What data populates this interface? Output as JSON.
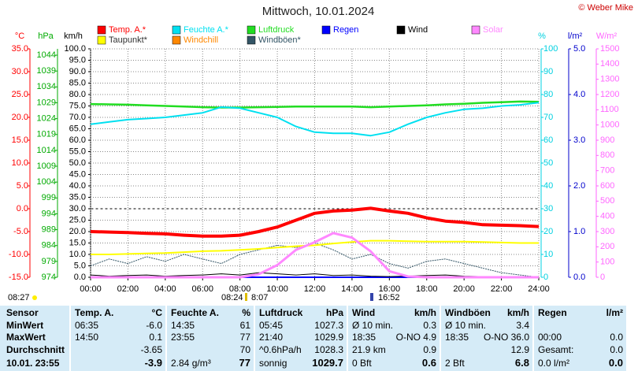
{
  "chart_data": {
    "type": "line",
    "title": "Mittwoch, 10.01.2024",
    "copyright": "© Weber Mike",
    "xlim": [
      0,
      24
    ],
    "xticks": [
      {
        "value": 0,
        "label": "00:00"
      },
      {
        "value": 2,
        "label": "02:00"
      },
      {
        "value": 4,
        "label": "04:00"
      },
      {
        "value": 6,
        "label": "06:00"
      },
      {
        "value": 8,
        "label": "08:00"
      },
      {
        "value": 10,
        "label": "10:00"
      },
      {
        "value": 12,
        "label": "12:00"
      },
      {
        "value": 14,
        "label": "14:00"
      },
      {
        "value": 16,
        "label": "16:00"
      },
      {
        "value": 18,
        "label": "18:00"
      },
      {
        "value": 20,
        "label": "20:00"
      },
      {
        "value": 22,
        "label": "22:00"
      },
      {
        "value": 24,
        "label": "24:00"
      }
    ],
    "grid": true,
    "axes": [
      {
        "unit": "°C",
        "color": "#ff0000",
        "lim": [
          -15,
          35
        ],
        "ticks": [
          {
            "value": -15,
            "label": "-15.0"
          },
          {
            "value": -10,
            "label": "-10.0"
          },
          {
            "value": -5,
            "label": "-5.0"
          },
          {
            "value": 0,
            "label": "0.0"
          },
          {
            "value": 5,
            "label": "5.0"
          },
          {
            "value": 10,
            "label": "10.0"
          },
          {
            "value": 15,
            "label": "15.0"
          },
          {
            "value": 20,
            "label": "20.0"
          },
          {
            "value": 25,
            "label": "25.0"
          },
          {
            "value": 30,
            "label": "30.0"
          },
          {
            "value": 35,
            "label": "35.0"
          }
        ]
      },
      {
        "unit": "hPa",
        "color": "#00aa00",
        "lim": [
          974,
          1046
        ],
        "ticks": [
          974,
          979,
          984,
          989,
          994,
          999,
          1004,
          1009,
          1014,
          1019,
          1024,
          1029,
          1034,
          1039,
          1044
        ]
      },
      {
        "unit": "km/h",
        "color": "#000000",
        "lim": [
          0,
          100
        ],
        "grid": true,
        "ticks": [
          {
            "value": 0,
            "label": "0.0"
          },
          {
            "value": 5,
            "label": "5.0"
          },
          {
            "value": 10,
            "label": "10.0"
          },
          {
            "value": 15,
            "label": "15.0"
          },
          {
            "value": 20,
            "label": "20.0"
          },
          {
            "value": 25,
            "label": "25.0"
          },
          {
            "value": 30,
            "label": "30.0"
          },
          {
            "value": 35,
            "label": "35.0"
          },
          {
            "value": 40,
            "label": "40.0"
          },
          {
            "value": 45,
            "label": "45.0"
          },
          {
            "value": 50,
            "label": "50.0"
          },
          {
            "value": 55,
            "label": "55.0"
          },
          {
            "value": 60,
            "label": "60.0"
          },
          {
            "value": 65,
            "label": "65.0"
          },
          {
            "value": 70,
            "label": "70.0"
          },
          {
            "value": 75,
            "label": "75.0"
          },
          {
            "value": 80,
            "label": "80.0"
          },
          {
            "value": 85,
            "label": "85.0"
          },
          {
            "value": 90,
            "label": "90.0"
          },
          {
            "value": 95,
            "label": "95.0"
          },
          {
            "value": 100,
            "label": "100.0"
          }
        ]
      },
      {
        "unit": "%",
        "color": "#00d0e0",
        "lim": [
          0,
          100
        ],
        "ticks": [
          0,
          10,
          20,
          30,
          40,
          50,
          60,
          70,
          80,
          90,
          100
        ]
      },
      {
        "unit": "l/m²",
        "color": "#0000cc",
        "lim": [
          0,
          5
        ],
        "ticks": [
          {
            "value": 0,
            "label": "0.0"
          },
          {
            "value": 1,
            "label": "1.0"
          },
          {
            "value": 2,
            "label": "2.0"
          },
          {
            "value": 3,
            "label": "3.0"
          },
          {
            "value": 4,
            "label": "4.0"
          },
          {
            "value": 5,
            "label": "5.0"
          }
        ]
      },
      {
        "unit": "W/m²",
        "color": "#ff66ff",
        "lim": [
          0,
          1500
        ],
        "ticks": [
          0,
          100,
          200,
          300,
          400,
          500,
          600,
          700,
          800,
          900,
          1000,
          1100,
          1200,
          1300,
          1400,
          1500
        ]
      }
    ],
    "x": [
      0,
      1,
      2,
      3,
      4,
      5,
      6,
      7,
      8,
      9,
      10,
      11,
      12,
      13,
      14,
      15,
      16,
      17,
      18,
      19,
      20,
      21,
      22,
      23,
      24
    ],
    "series": [
      {
        "name": "Temp. A.*",
        "color": "#ff0000",
        "axis": 0,
        "values": [
          -5,
          -5.1,
          -5.2,
          -5.4,
          -5.5,
          -5.8,
          -6,
          -6,
          -5.8,
          -5,
          -4,
          -2.5,
          -1,
          -0.5,
          -0.3,
          0.1,
          -0.5,
          -1,
          -2,
          -2.7,
          -3,
          -3.5,
          -3.6,
          -3.7,
          -3.9
        ]
      },
      {
        "name": "Feuchte A.*",
        "color": "#00e0f0",
        "axis": 3,
        "values": [
          67,
          68,
          69,
          69.5,
          70,
          71,
          72,
          74.5,
          74,
          72,
          70,
          66,
          63.5,
          63,
          63,
          62,
          63.5,
          67,
          70,
          72,
          73.5,
          74,
          75,
          75.5,
          76.5
        ]
      },
      {
        "name": "Luftdruck",
        "color": "#22dd22",
        "axis": 1,
        "values": [
          1028.6,
          1028.5,
          1028.4,
          1028.2,
          1028,
          1027.8,
          1027.6,
          1027.5,
          1027.5,
          1027.6,
          1027.7,
          1027.8,
          1027.8,
          1027.8,
          1027.8,
          1027.6,
          1027.8,
          1028,
          1028.2,
          1028.5,
          1028.7,
          1029,
          1029.2,
          1029.4,
          1029.3
        ]
      },
      {
        "name": "Regen",
        "color": "#0000ff",
        "axis": 4,
        "values": [
          0,
          0,
          0,
          0,
          0,
          0,
          0,
          0,
          0,
          0,
          0,
          0,
          0,
          0,
          0,
          0,
          0,
          0,
          0,
          0,
          0,
          0,
          0,
          0,
          0
        ]
      },
      {
        "name": "Wind",
        "color": "#000000",
        "axis": 2,
        "values": [
          1,
          0.5,
          0.8,
          1,
          0.5,
          0.8,
          1,
          1.5,
          1,
          2,
          1.5,
          1,
          1.5,
          0.8,
          1,
          0.5,
          0.3,
          0.5,
          0.8,
          1,
          0.5,
          0.3,
          0.2,
          0.1,
          0
        ]
      },
      {
        "name": "Solar",
        "color": "#ff88ff",
        "axis": 5,
        "values": [
          0,
          0,
          0,
          0,
          0,
          0,
          0,
          0,
          0,
          20,
          80,
          180,
          230,
          290,
          260,
          170,
          40,
          5,
          0,
          0,
          0,
          0,
          0,
          0,
          0
        ]
      },
      {
        "name": "Taupunkt*",
        "color": "#ffff00",
        "axis": 0,
        "values": [
          -10,
          -10,
          -9.9,
          -9.8,
          -9.7,
          -9.5,
          -9.3,
          -9.2,
          -9,
          -8.8,
          -8.5,
          -8.2,
          -8,
          -7.6,
          -7.3,
          -7,
          -7,
          -7.1,
          -7.2,
          -7.2,
          -7.2,
          -7.3,
          -7.4,
          -7.5,
          -7.5
        ]
      },
      {
        "name": "Windchill",
        "color": "#ff8800",
        "axis": 0
      },
      {
        "name": "Windböen*",
        "color": "#335566",
        "axis": 2,
        "values": [
          5,
          8,
          6,
          9,
          7,
          10,
          8,
          6,
          10,
          12,
          14,
          13,
          15,
          12,
          8,
          10,
          6,
          4,
          7,
          8,
          6,
          4,
          2,
          1,
          0
        ]
      }
    ],
    "annotations": [
      "08:27",
      "08:24",
      "8:07",
      "16:52"
    ]
  },
  "table": {
    "rows": [
      [
        "Sensor",
        "Temp. A.",
        "°C",
        "Feuchte A.",
        "%",
        "Luftdruck",
        "hPa",
        "Wind",
        "km/h",
        "Windböen",
        "km/h",
        "Regen",
        "l/m²"
      ],
      [
        "MinWert",
        "06:35",
        "-6.0",
        "14:35",
        "61",
        "05:45",
        "1027.3",
        "Ø 10 min.",
        "0.3",
        "Ø 10 min.",
        "3.4",
        null,
        null
      ],
      [
        "MaxWert",
        "14:50",
        "0.1",
        "23:55",
        "77",
        "21:40",
        "1029.9",
        "18:35",
        "O-NO 4.9",
        "18:35",
        "O-NO 36.0",
        "00:00",
        "0.0"
      ],
      [
        "Durchschnitt",
        null,
        "-3.65",
        null,
        "70",
        "^0.6hPa/h",
        "1028.3",
        "21.9 km",
        "0.9",
        null,
        "12.9",
        "Gesamt:",
        "0.0"
      ],
      [
        "10.01. 23:55",
        null,
        "-3.9",
        "2.84 g/m³",
        "77",
        "sonnig",
        "1029.7",
        "0 Bft",
        "0.6",
        "2 Bft",
        "6.8",
        "0.0 l/m²",
        "0.0"
      ]
    ]
  }
}
